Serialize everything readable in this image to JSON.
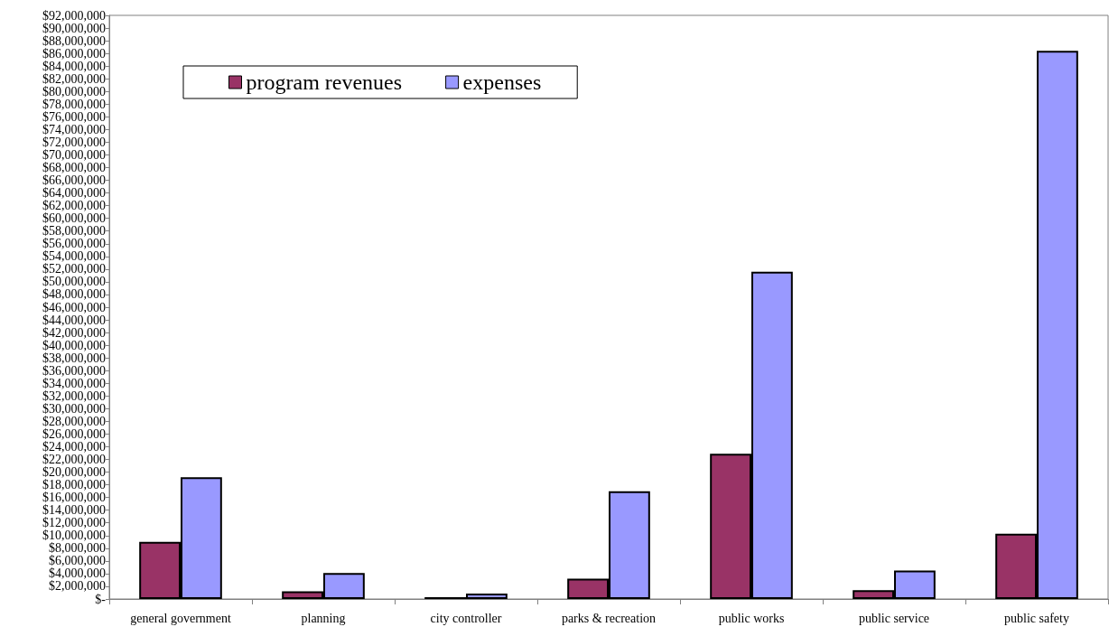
{
  "chart_data": {
    "type": "bar",
    "categories": [
      "general government",
      "planning",
      "city controller",
      "parks & recreation",
      "public works",
      "public service",
      "public safety"
    ],
    "series": [
      {
        "name": "program revenues",
        "color": "#993366",
        "values": [
          9000000,
          1200000,
          300000,
          3200000,
          22900000,
          1400000,
          10300000
        ]
      },
      {
        "name": "expenses",
        "color": "#9999ff",
        "values": [
          19200000,
          4100000,
          850000,
          17000000,
          51600000,
          4500000,
          86400000
        ]
      }
    ],
    "ylim": [
      0,
      92000000
    ],
    "yticks": [
      {
        "value": 0,
        "label": "$-"
      },
      {
        "value": 2000000,
        "label": "$2,000,000"
      },
      {
        "value": 4000000,
        "label": "$4,000,000"
      },
      {
        "value": 6000000,
        "label": "$6,000,000"
      },
      {
        "value": 8000000,
        "label": "$8,000,000"
      },
      {
        "value": 10000000,
        "label": "$10,000,000"
      },
      {
        "value": 12000000,
        "label": "$12,000,000"
      },
      {
        "value": 14000000,
        "label": "$14,000,000"
      },
      {
        "value": 16000000,
        "label": "$16,000,000"
      },
      {
        "value": 18000000,
        "label": "$18,000,000"
      },
      {
        "value": 20000000,
        "label": "$20,000,000"
      },
      {
        "value": 22000000,
        "label": "$22,000,000"
      },
      {
        "value": 24000000,
        "label": "$24,000,000"
      },
      {
        "value": 26000000,
        "label": "$26,000,000"
      },
      {
        "value": 28000000,
        "label": "$28,000,000"
      },
      {
        "value": 30000000,
        "label": "$30,000,000"
      },
      {
        "value": 32000000,
        "label": "$32,000,000"
      },
      {
        "value": 34000000,
        "label": "$34,000,000"
      },
      {
        "value": 36000000,
        "label": "$36,000,000"
      },
      {
        "value": 38000000,
        "label": "$38,000,000"
      },
      {
        "value": 40000000,
        "label": "$40,000,000"
      },
      {
        "value": 42000000,
        "label": "$42,000,000"
      },
      {
        "value": 44000000,
        "label": "$44,000,000"
      },
      {
        "value": 46000000,
        "label": "$46,000,000"
      },
      {
        "value": 48000000,
        "label": "$48,000,000"
      },
      {
        "value": 50000000,
        "label": "$50,000,000"
      },
      {
        "value": 52000000,
        "label": "$52,000,000"
      },
      {
        "value": 54000000,
        "label": "$54,000,000"
      },
      {
        "value": 56000000,
        "label": "$56,000,000"
      },
      {
        "value": 58000000,
        "label": "$58,000,000"
      },
      {
        "value": 60000000,
        "label": "$60,000,000"
      },
      {
        "value": 62000000,
        "label": "$62,000,000"
      },
      {
        "value": 64000000,
        "label": "$64,000,000"
      },
      {
        "value": 66000000,
        "label": "$66,000,000"
      },
      {
        "value": 68000000,
        "label": "$68,000,000"
      },
      {
        "value": 70000000,
        "label": "$70,000,000"
      },
      {
        "value": 72000000,
        "label": "$72,000,000"
      },
      {
        "value": 74000000,
        "label": "$74,000,000"
      },
      {
        "value": 76000000,
        "label": "$76,000,000"
      },
      {
        "value": 78000000,
        "label": "$78,000,000"
      },
      {
        "value": 80000000,
        "label": "$80,000,000"
      },
      {
        "value": 82000000,
        "label": "$82,000,000"
      },
      {
        "value": 84000000,
        "label": "$84,000,000"
      },
      {
        "value": 86000000,
        "label": "$86,000,000"
      },
      {
        "value": 88000000,
        "label": "$88,000,000"
      },
      {
        "value": 90000000,
        "label": "$90,000,000"
      },
      {
        "value": 92000000,
        "label": "$92,000,000"
      }
    ],
    "grid": false,
    "legend": "top left"
  }
}
